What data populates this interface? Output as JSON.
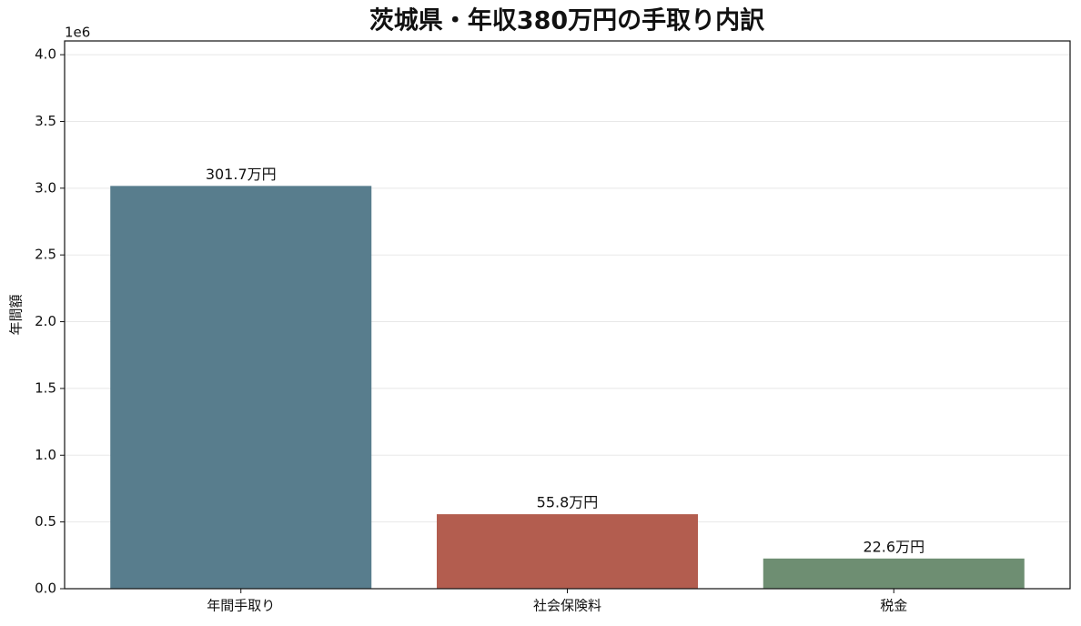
{
  "chart_data": {
    "type": "bar",
    "title": "茨城県・年収380万円の手取り内訳",
    "y_label": "年間額",
    "y_offset_label": "1e6",
    "categories": [
      "年間手取り",
      "社会保険料",
      "税金"
    ],
    "values": [
      3017000,
      558000,
      226000
    ],
    "value_labels": [
      "301.7万円",
      "55.8万円",
      "22.6万円"
    ],
    "colors": [
      "#587d8d",
      "#b35d4f",
      "#6e8e72"
    ],
    "ylim": [
      0,
      4103000
    ],
    "yticks": [
      {
        "value": 0,
        "label": "0.0"
      },
      {
        "value": 500000,
        "label": "0.5"
      },
      {
        "value": 1000000,
        "label": "1.0"
      },
      {
        "value": 1500000,
        "label": "1.5"
      },
      {
        "value": 2000000,
        "label": "2.0"
      },
      {
        "value": 2500000,
        "label": "2.5"
      },
      {
        "value": 3000000,
        "label": "3.0"
      },
      {
        "value": 3500000,
        "label": "3.5"
      },
      {
        "value": 4000000,
        "label": "4.0"
      }
    ],
    "grid": true
  }
}
